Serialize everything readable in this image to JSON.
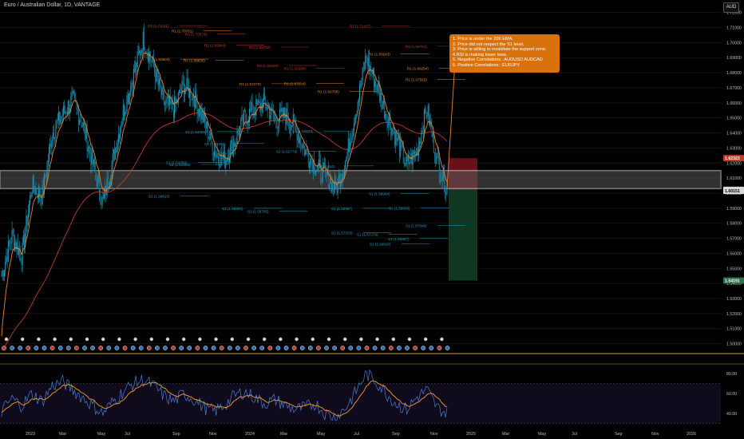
{
  "header": {
    "title": "Euro / Australian Dollar, 1D, VANTAGE",
    "currency": "AUD"
  },
  "note": {
    "lines": [
      "1. Price is under the 200 EMA.",
      "2. Price did not respect the S1 level.",
      "3. Price is willing to invalidate the support zone.",
      "4.RSI is making lower lows.",
      "5. Negative Correlations : AUDUSD AUDCAD",
      "6. Positive Correlations : EURJPY"
    ]
  },
  "colors": {
    "background": "#000000",
    "candle": "#1e9fc4",
    "ema_fast": "#e8842a",
    "ema_200": "#c0392b",
    "support_zone": "#d8d8d8",
    "stop_zone": "#7a1420",
    "target_zone": "#113d26",
    "rsi_line": "#4a7ed8",
    "rsi_ma": "#f0a030",
    "note_bg": "#d9720c"
  },
  "chart_data": [
    {
      "type": "candlestick",
      "instrument": "Euro / Australian Dollar",
      "timeframe": "1D",
      "ylim": [
        1.495,
        1.723
      ],
      "y_ticks": [
        "1.72000",
        "1.71000",
        "1.70000",
        "1.69000",
        "1.68000",
        "1.67000",
        "1.66000",
        "1.65000",
        "1.64000",
        "1.63000",
        "1.62000",
        "1.61000",
        "1.60000",
        "1.59000",
        "1.58000",
        "1.57000",
        "1.56000",
        "1.55000",
        "1.54000",
        "1.53000",
        "1.52000",
        "1.51000",
        "1.50000"
      ],
      "x_ticks": [
        "2023",
        "Mar",
        "May",
        "Jul",
        "Sep",
        "Nov",
        "2024",
        "Mar",
        "May",
        "Jul",
        "Sep",
        "Nov",
        "2025",
        "Mar",
        "May",
        "Jul",
        "Sep",
        "Nov",
        "2026"
      ],
      "price_labels": [
        {
          "text": "1.62323",
          "value": 1.62323,
          "color": "#c0392b"
        },
        {
          "text": "1.60220",
          "value": 1.6022,
          "color": "#d8d8d8"
        },
        {
          "text": "1.60151",
          "value": 1.60151,
          "color": "#d8d8d8"
        },
        {
          "text": "1.54191",
          "value": 1.54191,
          "color": "#2f6e4e"
        }
      ],
      "support_zone": [
        1.603,
        1.615
      ],
      "position": {
        "entry": 1.6022,
        "stop": 1.62323,
        "target": 1.54191
      },
      "pivot_labels": [
        {
          "text": "R2 (1.71121)",
          "value": 1.71121,
          "color": "#c0392b"
        },
        {
          "text": "R1 (1.70781)",
          "value": 1.70781,
          "color": "#e8842a"
        },
        {
          "text": "R2 (1.70575)",
          "value": 1.70575,
          "color": "#c0392b"
        },
        {
          "text": "R2 (1.69844)",
          "value": 1.69844,
          "color": "#c0392b"
        },
        {
          "text": "R2 (1.69702)",
          "value": 1.69702,
          "color": "#c0392b"
        },
        {
          "text": "R1 (1.68902)",
          "value": 1.68902,
          "color": "#e8842a"
        },
        {
          "text": "R1 (1.68830)",
          "value": 1.6883,
          "color": "#e8842a"
        },
        {
          "text": "R2 (1.68480)",
          "value": 1.6848,
          "color": "#c0392b"
        },
        {
          "text": "R2 (1.68298)",
          "value": 1.68298,
          "color": "#c0392b"
        },
        {
          "text": "R1 (1.67270)",
          "value": 1.6727,
          "color": "#e8842a"
        },
        {
          "text": "R1 (1.67294)",
          "value": 1.67294,
          "color": "#e8842a"
        },
        {
          "text": "R1 (1.66758)",
          "value": 1.66758,
          "color": "#e8842a"
        },
        {
          "text": "R2 (1.71107)",
          "value": 1.71107,
          "color": "#c0392b"
        },
        {
          "text": "R1 (1.69243)",
          "value": 1.69243,
          "color": "#e8842a"
        },
        {
          "text": "R2 (1.69761)",
          "value": 1.69761,
          "color": "#c0392b"
        },
        {
          "text": "R1 (1.68294)",
          "value": 1.68294,
          "color": "#e8842a"
        },
        {
          "text": "R1 (1.67565)",
          "value": 1.67565,
          "color": "#e8842a"
        },
        {
          "text": "S1 (1.64089)",
          "value": 1.64089,
          "color": "#1e9fc4"
        },
        {
          "text": "S1 (1.63296)",
          "value": 1.63296,
          "color": "#1e9fc4"
        },
        {
          "text": "S1 (1.64125)",
          "value": 1.64125,
          "color": "#1e9fc4"
        },
        {
          "text": "S2 (1.62778)",
          "value": 1.62778,
          "color": "#1e9fc4"
        },
        {
          "text": "S1 (1.62050)",
          "value": 1.6205,
          "color": "#1e9fc4"
        },
        {
          "text": "S1 (1.61908)",
          "value": 1.61908,
          "color": "#1e9fc4"
        },
        {
          "text": "S1 (1.61812)",
          "value": 1.61812,
          "color": "#1e9fc4"
        },
        {
          "text": "S2 (1.59810)",
          "value": 1.5981,
          "color": "#1e9fc4"
        },
        {
          "text": "S2 (1.58996)",
          "value": 1.58996,
          "color": "#1e9fc4"
        },
        {
          "text": "S2 (1.58795)",
          "value": 1.58795,
          "color": "#1e9fc4"
        },
        {
          "text": "S1 (1.59984)",
          "value": 1.59984,
          "color": "#1e9fc4"
        },
        {
          "text": "S1 (1.58997)",
          "value": 1.58997,
          "color": "#1e9fc4"
        },
        {
          "text": "S1 (1.59008)",
          "value": 1.59008,
          "color": "#1e9fc4"
        },
        {
          "text": "S2 (1.57849)",
          "value": 1.57849,
          "color": "#1e9fc4"
        },
        {
          "text": "S2 (1.57370)",
          "value": 1.5737,
          "color": "#1e9fc4"
        },
        {
          "text": "S2 (1.57279)",
          "value": 1.57279,
          "color": "#1e9fc4"
        },
        {
          "text": "S2 (1.56987)",
          "value": 1.56987,
          "color": "#1e9fc4"
        },
        {
          "text": "S2 (1.56620)",
          "value": 1.5662,
          "color": "#1e9fc4"
        }
      ],
      "close_path": [
        {
          "x": "2023-01",
          "y": 1.545
        },
        {
          "x": "2023-02",
          "y": 1.572
        },
        {
          "x": "2023-02",
          "y": 1.558
        },
        {
          "x": "2023-03",
          "y": 1.605
        },
        {
          "x": "2023-03",
          "y": 1.598
        },
        {
          "x": "2023-04",
          "y": 1.64
        },
        {
          "x": "2023-04",
          "y": 1.652
        },
        {
          "x": "2023-05",
          "y": 1.662
        },
        {
          "x": "2023-05",
          "y": 1.646
        },
        {
          "x": "2023-06",
          "y": 1.62
        },
        {
          "x": "2023-06",
          "y": 1.593
        },
        {
          "x": "2023-07",
          "y": 1.622
        },
        {
          "x": "2023-07",
          "y": 1.654
        },
        {
          "x": "2023-08",
          "y": 1.678
        },
        {
          "x": "2023-08",
          "y": 1.702
        },
        {
          "x": "2023-09",
          "y": 1.684
        },
        {
          "x": "2023-09",
          "y": 1.66
        },
        {
          "x": "2023-10",
          "y": 1.656
        },
        {
          "x": "2023-10",
          "y": 1.672
        },
        {
          "x": "2023-11",
          "y": 1.664
        },
        {
          "x": "2023-11",
          "y": 1.648
        },
        {
          "x": "2023-12",
          "y": 1.628
        },
        {
          "x": "2023-12",
          "y": 1.622
        },
        {
          "x": "2024-01",
          "y": 1.634
        },
        {
          "x": "2024-02",
          "y": 1.65
        },
        {
          "x": "2024-02",
          "y": 1.656
        },
        {
          "x": "2024-03",
          "y": 1.66
        },
        {
          "x": "2024-03",
          "y": 1.648
        },
        {
          "x": "2024-04",
          "y": 1.652
        },
        {
          "x": "2024-04",
          "y": 1.644
        },
        {
          "x": "2024-05",
          "y": 1.628
        },
        {
          "x": "2024-06",
          "y": 1.618
        },
        {
          "x": "2024-06",
          "y": 1.612
        },
        {
          "x": "2024-07",
          "y": 1.603
        },
        {
          "x": "2024-07",
          "y": 1.622
        },
        {
          "x": "2024-08",
          "y": 1.655
        },
        {
          "x": "2024-08",
          "y": 1.69
        },
        {
          "x": "2024-08",
          "y": 1.672
        },
        {
          "x": "2024-09",
          "y": 1.652
        },
        {
          "x": "2024-09",
          "y": 1.636
        },
        {
          "x": "2024-10",
          "y": 1.618
        },
        {
          "x": "2024-10",
          "y": 1.628
        },
        {
          "x": "2024-10",
          "y": 1.656
        },
        {
          "x": "2024-11",
          "y": 1.622
        },
        {
          "x": "2024-11",
          "y": 1.6022
        }
      ]
    },
    {
      "type": "line",
      "name": "RSI",
      "ylim": [
        32,
        85
      ],
      "y_ticks": [
        "80.00",
        "60.00",
        "40.00"
      ],
      "levels": [
        70,
        30
      ],
      "values": [
        42,
        55,
        48,
        60,
        52,
        68,
        72,
        64,
        56,
        48,
        40,
        52,
        62,
        70,
        74,
        68,
        58,
        52,
        60,
        54,
        46,
        42,
        48,
        58,
        62,
        56,
        50,
        54,
        48,
        44,
        46,
        50,
        40,
        36,
        46,
        62,
        80,
        72,
        60,
        50,
        44,
        56,
        64,
        46,
        40
      ]
    }
  ]
}
